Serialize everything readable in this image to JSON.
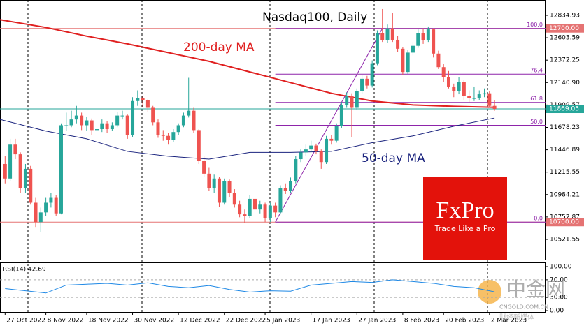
{
  "chart_data": [
    {
      "type": "candlestick",
      "title": "Nasdaq100, Daily",
      "up_color": "#26a69a",
      "down_color": "#ef5350",
      "xlim": [
        -1,
        106
      ],
      "ylim": [
        10312.5,
        12993.4
      ],
      "yticks": [
        12834.93,
        12603.59,
        12372.25,
        {
          "value": 12140.9,
          "label": "12140.90"
        },
        11909.57,
        11678.23,
        11446.89,
        11215.55,
        10984.21,
        10752.87,
        10521.55
      ],
      "xticks": [
        {
          "value": 0,
          "label": "27 Oct 2022"
        },
        {
          "value": 8,
          "label": "8 Nov 2022"
        },
        {
          "value": 16,
          "label": "18 Nov 2022"
        },
        {
          "value": 25,
          "label": "30 Nov 2022"
        },
        {
          "value": 34,
          "label": "12 Dec 2022"
        },
        {
          "value": 43,
          "label": "22 Dec 2022"
        },
        {
          "value": 51,
          "label": "5 Jan 2023"
        },
        {
          "value": 60,
          "label": "17 Jan 2023"
        },
        {
          "value": 69,
          "label": "27 Jan 2023"
        },
        {
          "value": 78,
          "label": "8 Feb 2023"
        },
        {
          "value": 86,
          "label": "20 Feb 2023"
        },
        {
          "value": 95,
          "label": "2 Mar 2023"
        }
      ],
      "ohlc": [
        [
          11300,
          11380,
          11100,
          11150
        ],
        [
          11150,
          11560,
          11120,
          11500
        ],
        [
          11500,
          11560,
          11350,
          11400
        ],
        [
          11400,
          11420,
          11000,
          11050
        ],
        [
          11050,
          11300,
          11000,
          11250
        ],
        [
          11250,
          11280,
          10880,
          10900
        ],
        [
          10900,
          10950,
          10650,
          10700
        ],
        [
          10700,
          10850,
          10600,
          10800
        ],
        [
          10800,
          10950,
          10760,
          10900
        ],
        [
          10900,
          11000,
          10850,
          10950
        ],
        [
          10950,
          10980,
          10760,
          10790
        ],
        [
          10790,
          11720,
          10780,
          11700
        ],
        [
          11700,
          11830,
          11640,
          11700
        ],
        [
          11700,
          11850,
          11680,
          11760
        ],
        [
          11760,
          11900,
          11720,
          11800
        ],
        [
          11800,
          11830,
          11650,
          11700
        ],
        [
          11700,
          11790,
          11640,
          11750
        ],
        [
          11750,
          11770,
          11600,
          11650
        ],
        [
          11650,
          11700,
          11580,
          11660
        ],
        [
          11660,
          11760,
          11630,
          11720
        ],
        [
          11720,
          11740,
          11620,
          11660
        ],
        [
          11660,
          11730,
          11640,
          11700
        ],
        [
          11700,
          11840,
          11680,
          11800
        ],
        [
          11800,
          11850,
          11760,
          11800
        ],
        [
          11800,
          11810,
          11560,
          11600
        ],
        [
          11600,
          11990,
          11580,
          11950
        ],
        [
          11950,
          12060,
          11900,
          11980
        ],
        [
          11980,
          12000,
          11890,
          11960
        ],
        [
          11960,
          11970,
          11840,
          11880
        ],
        [
          11880,
          11900,
          11700,
          11730
        ],
        [
          11730,
          11760,
          11570,
          11600
        ],
        [
          11600,
          11650,
          11540,
          11590
        ],
        [
          11590,
          11620,
          11500,
          11550
        ],
        [
          11550,
          11660,
          11530,
          11630
        ],
        [
          11630,
          11720,
          11600,
          11700
        ],
        [
          11700,
          11830,
          11680,
          11800
        ],
        [
          11800,
          12190,
          11780,
          11850
        ],
        [
          11850,
          11880,
          11620,
          11650
        ],
        [
          11650,
          11660,
          11300,
          11330
        ],
        [
          11330,
          11380,
          11170,
          11200
        ],
        [
          11200,
          11260,
          11020,
          11050
        ],
        [
          11050,
          11190,
          11000,
          11150
        ],
        [
          11150,
          11170,
          10860,
          10900
        ],
        [
          10900,
          11150,
          10880,
          11120
        ],
        [
          11120,
          11140,
          10960,
          11000
        ],
        [
          11000,
          11040,
          10850,
          10880
        ],
        [
          10880,
          10920,
          10750,
          10780
        ],
        [
          10780,
          10830,
          10690,
          10760
        ],
        [
          10760,
          10980,
          10740,
          10940
        ],
        [
          10940,
          10960,
          10800,
          10830
        ],
        [
          10830,
          10920,
          10790,
          10880
        ],
        [
          10880,
          10900,
          10700,
          10740
        ],
        [
          10740,
          10900,
          10700,
          10870
        ],
        [
          10870,
          10900,
          10750,
          10800
        ],
        [
          10800,
          11080,
          10780,
          11050
        ],
        [
          11050,
          11100,
          10990,
          11020
        ],
        [
          11020,
          11160,
          11000,
          11120
        ],
        [
          11120,
          11380,
          11100,
          11350
        ],
        [
          11350,
          11450,
          11320,
          11420
        ],
        [
          11420,
          11500,
          11380,
          11450
        ],
        [
          11450,
          11540,
          11420,
          11490
        ],
        [
          11490,
          11510,
          11400,
          11430
        ],
        [
          11430,
          11450,
          11250,
          11320
        ],
        [
          11320,
          11590,
          11300,
          11560
        ],
        [
          11560,
          11600,
          11500,
          11540
        ],
        [
          11540,
          11720,
          11520,
          11690
        ],
        [
          11690,
          11940,
          11670,
          11910
        ],
        [
          11910,
          12040,
          11880,
          12000
        ],
        [
          12000,
          12030,
          11580,
          11880
        ],
        [
          11880,
          12080,
          11860,
          12050
        ],
        [
          12050,
          12220,
          12020,
          12180
        ],
        [
          12180,
          12210,
          12080,
          12110
        ],
        [
          12110,
          12370,
          12090,
          12340
        ],
        [
          12340,
          12680,
          12320,
          12650
        ],
        [
          12650,
          12900,
          12560,
          12580
        ],
        [
          12580,
          12740,
          12550,
          12700
        ],
        [
          12700,
          12860,
          12560,
          12580
        ],
        [
          12580,
          12620,
          12460,
          12490
        ],
        [
          12490,
          12510,
          12220,
          12250
        ],
        [
          12250,
          12480,
          12230,
          12450
        ],
        [
          12450,
          12560,
          12420,
          12520
        ],
        [
          12520,
          12690,
          12500,
          12650
        ],
        [
          12650,
          12700,
          12540,
          12580
        ],
        [
          12580,
          12720,
          12560,
          12690
        ],
        [
          12690,
          12700,
          12400,
          12440
        ],
        [
          12440,
          12470,
          12280,
          12300
        ],
        [
          12300,
          12330,
          12150,
          12200
        ],
        [
          12200,
          12260,
          12080,
          12100
        ],
        [
          12100,
          12130,
          11990,
          12050
        ],
        [
          12050,
          12200,
          12020,
          12150
        ],
        [
          12150,
          12170,
          11960,
          12000
        ],
        [
          12000,
          12060,
          11940,
          11980
        ],
        [
          11980,
          12100,
          11950,
          11980
        ],
        [
          11980,
          12060,
          11960,
          12020
        ],
        [
          12020,
          12080,
          11990,
          12030
        ],
        [
          12030,
          12050,
          11880,
          11900
        ],
        [
          11900,
          11960,
          11850,
          11869.05
        ]
      ],
      "series": [
        {
          "name": "200-day MA",
          "color": "#e02020",
          "x": [
            -1,
            8,
            16,
            24,
            32,
            40,
            48,
            56,
            64,
            72,
            80,
            88,
            96
          ],
          "values": [
            12790,
            12710,
            12620,
            12540,
            12450,
            12360,
            12250,
            12140,
            12030,
            11950,
            11910,
            11895,
            11885
          ]
        },
        {
          "name": "50-day MA",
          "color": "#1a237e",
          "x": [
            -1,
            8,
            16,
            24,
            32,
            40,
            48,
            56,
            64,
            72,
            80,
            88,
            96
          ],
          "values": [
            11760,
            11640,
            11560,
            11430,
            11380,
            11350,
            11420,
            11420,
            11430,
            11520,
            11590,
            11690,
            11775
          ]
        }
      ],
      "price_lines": [
        {
          "value": 12700,
          "label": "12700.00",
          "color": "#e57373"
        },
        {
          "value": 11869.05,
          "label": "11869.05",
          "color": "#26a69a"
        },
        {
          "value": 10700,
          "label": "10700.00",
          "color": "#e57373"
        }
      ],
      "fib": {
        "color": "#8e24aa",
        "anchor_x": [
          53,
          74
        ],
        "levels": [
          {
            "value": 12700,
            "label": "100.0"
          },
          {
            "value": 12228,
            "label": "76.4"
          },
          {
            "value": 11936,
            "label": "61.8"
          },
          {
            "value": 11700,
            "label": "50.0"
          },
          {
            "value": 10700,
            "label": "0.0"
          }
        ]
      },
      "logo": {
        "name": "FxPro",
        "tagline": "Trade Like a Pro"
      },
      "watermark": {
        "name": "中金网",
        "site": "CNGOLD.COM.CN",
        "tagline": "财经新媒体"
      }
    },
    {
      "type": "line",
      "title": "RSI(14) 42.69",
      "color": "#1e88e5",
      "x": [
        0,
        4,
        8,
        12,
        16,
        20,
        24,
        28,
        32,
        36,
        40,
        44,
        48,
        52,
        56,
        60,
        64,
        68,
        72,
        76,
        80,
        84,
        88,
        92,
        96
      ],
      "values": [
        50,
        45,
        40,
        58,
        60,
        62,
        58,
        63,
        55,
        52,
        57,
        48,
        42,
        45,
        44,
        58,
        62,
        66,
        64,
        70,
        66,
        62,
        55,
        52,
        42.69
      ],
      "ylim": [
        0,
        100
      ],
      "yticks": [
        {
          "value": 100,
          "label": "100.00"
        },
        {
          "value": 70,
          "label": "70.00"
        },
        {
          "value": 30,
          "label": "30.00"
        },
        {
          "value": 0,
          "label": "0.00"
        }
      ]
    }
  ]
}
